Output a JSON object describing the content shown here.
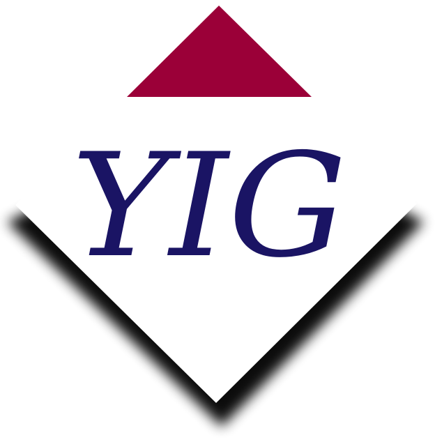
{
  "logo": {
    "monogram": "YIG"
  },
  "colors": {
    "background": "#ffffff",
    "roof": "#9b0038",
    "diamond": "#ffffff",
    "monogram": "#1a1464",
    "shadow": "#000000"
  }
}
